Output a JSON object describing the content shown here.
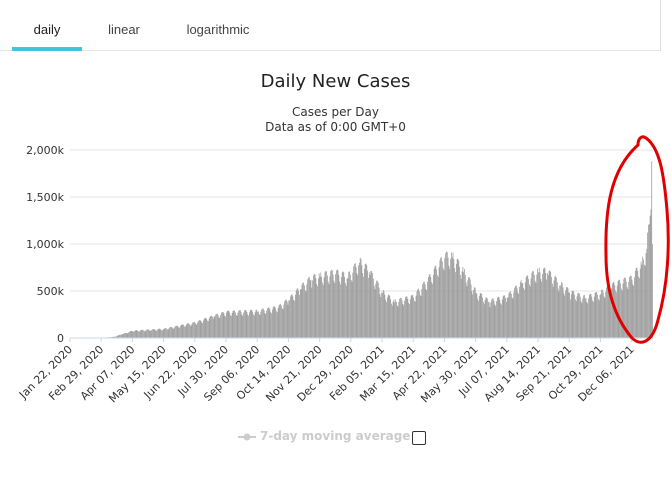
{
  "tabs": [
    {
      "label": "daily",
      "active": true
    },
    {
      "label": "linear",
      "active": false
    },
    {
      "label": "logarithmic",
      "active": false
    }
  ],
  "colors": {
    "accent": "#3ec6e0",
    "bars": "#999999",
    "annotation": "#e00000",
    "legend_inactive": "#cccccc"
  },
  "legend": {
    "label": "7-day moving average",
    "checked": false
  },
  "chart_data": {
    "type": "bar",
    "title": "Daily New Cases",
    "subtitle": "Cases per Day",
    "subtitle2": "Data as of 0:00 GMT+0",
    "ylim": [
      0,
      2000000
    ],
    "y_ticks": [
      0,
      500000,
      1000000,
      1500000,
      2000000
    ],
    "y_tick_labels": [
      "0",
      "500k",
      "1,000k",
      "1,500k",
      "2,000k"
    ],
    "x_start": "2020-01-22",
    "x_tick_labels": [
      "Jan 22, 2020",
      "Feb 29, 2020",
      "Apr 07, 2020",
      "May 15, 2020",
      "Jun 22, 2020",
      "Jul 30, 2020",
      "Sep 06, 2020",
      "Oct 14, 2020",
      "Nov 21, 2020",
      "Dec 29, 2020",
      "Feb 05, 2021",
      "Mar 15, 2021",
      "Apr 22, 2021",
      "May 30, 2021",
      "Jul 07, 2021",
      "Aug 14, 2021",
      "Sep 21, 2021",
      "Oct 29, 2021",
      "Dec 06, 2021"
    ],
    "series": [
      {
        "values": [
          {
            "date": "2020-01-22",
            "value": 0
          },
          {
            "date": "2020-03-01",
            "value": 2000
          },
          {
            "date": "2020-03-15",
            "value": 12000
          },
          {
            "date": "2020-03-25",
            "value": 40000
          },
          {
            "date": "2020-04-07",
            "value": 75000
          },
          {
            "date": "2020-05-15",
            "value": 95000
          },
          {
            "date": "2020-06-22",
            "value": 160000
          },
          {
            "date": "2020-07-15",
            "value": 230000
          },
          {
            "date": "2020-07-30",
            "value": 270000
          },
          {
            "date": "2020-09-06",
            "value": 280000
          },
          {
            "date": "2020-10-01",
            "value": 320000
          },
          {
            "date": "2020-10-14",
            "value": 400000
          },
          {
            "date": "2020-10-28",
            "value": 520000
          },
          {
            "date": "2020-11-10",
            "value": 620000
          },
          {
            "date": "2020-11-21",
            "value": 650000
          },
          {
            "date": "2020-12-10",
            "value": 680000
          },
          {
            "date": "2020-12-25",
            "value": 640000
          },
          {
            "date": "2021-01-08",
            "value": 800000
          },
          {
            "date": "2021-01-20",
            "value": 700000
          },
          {
            "date": "2021-02-05",
            "value": 480000
          },
          {
            "date": "2021-02-20",
            "value": 380000
          },
          {
            "date": "2021-03-15",
            "value": 430000
          },
          {
            "date": "2021-04-01",
            "value": 600000
          },
          {
            "date": "2021-04-22",
            "value": 850000
          },
          {
            "date": "2021-05-01",
            "value": 860000
          },
          {
            "date": "2021-05-15",
            "value": 700000
          },
          {
            "date": "2021-05-30",
            "value": 480000
          },
          {
            "date": "2021-06-15",
            "value": 380000
          },
          {
            "date": "2021-07-07",
            "value": 430000
          },
          {
            "date": "2021-07-25",
            "value": 580000
          },
          {
            "date": "2021-08-14",
            "value": 700000
          },
          {
            "date": "2021-08-25",
            "value": 690000
          },
          {
            "date": "2021-09-10",
            "value": 560000
          },
          {
            "date": "2021-09-21",
            "value": 480000
          },
          {
            "date": "2021-10-10",
            "value": 420000
          },
          {
            "date": "2021-10-29",
            "value": 470000
          },
          {
            "date": "2021-11-15",
            "value": 560000
          },
          {
            "date": "2021-12-06",
            "value": 620000
          },
          {
            "date": "2021-12-18",
            "value": 780000
          },
          {
            "date": "2021-12-24",
            "value": 950000
          },
          {
            "date": "2021-12-28",
            "value": 1300000
          },
          {
            "date": "2021-12-30",
            "value": 1880000
          },
          {
            "date": "2021-12-31",
            "value": 1000000
          }
        ]
      }
    ],
    "grid": true,
    "legend_position": "bottom"
  }
}
